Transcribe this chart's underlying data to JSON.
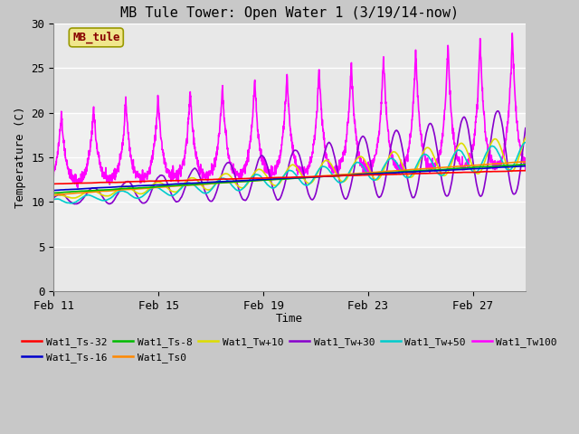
{
  "title": "MB Tule Tower: Open Water 1 (3/19/14-now)",
  "xlabel": "Time",
  "ylabel": "Temperature (C)",
  "ylim": [
    0,
    30
  ],
  "yticks": [
    0,
    5,
    10,
    15,
    20,
    25,
    30
  ],
  "xtick_labels": [
    "Feb 11",
    "Feb 15",
    "Feb 19",
    "Feb 23",
    "Feb 27"
  ],
  "xtick_positions": [
    0,
    4,
    8,
    12,
    16
  ],
  "fig_facecolor": "#c8c8c8",
  "ax_facecolor": "#e8e8e8",
  "inner_band_color": "#d8d8d8",
  "grid_color": "#ffffff",
  "legend_box_label": "MB_tule",
  "legend_box_facecolor": "#f0e68c",
  "legend_box_edgecolor": "#999900",
  "legend_box_textcolor": "#880000",
  "series_order": [
    "Wat1_Tw100",
    "Wat1_Tw+30",
    "Wat1_Tw+10",
    "Wat1_Tw+50",
    "Wat1_Ts0",
    "Wat1_Ts-8",
    "Wat1_Ts-16",
    "Wat1_Ts-32"
  ],
  "series_colors": {
    "Wat1_Ts-32": "#ff0000",
    "Wat1_Ts-16": "#0000cc",
    "Wat1_Ts-8": "#00bb00",
    "Wat1_Ts0": "#ff8800",
    "Wat1_Tw+10": "#dddd00",
    "Wat1_Tw+30": "#8800cc",
    "Wat1_Tw+50": "#00cccc",
    "Wat1_Tw100": "#ff00ff"
  },
  "series_starts": {
    "Wat1_Ts-32": 12.0,
    "Wat1_Ts-16": 11.3,
    "Wat1_Ts-8": 11.0,
    "Wat1_Ts0": 10.8,
    "Wat1_Tw+10": 10.5,
    "Wat1_Tw+30": 10.2,
    "Wat1_Tw+50": 10.0,
    "Wat1_Tw100": 12.0
  },
  "series_ends": {
    "Wat1_Ts-32": 13.5,
    "Wat1_Ts-16": 14.0,
    "Wat1_Ts-8": 14.2,
    "Wat1_Ts0": 14.5,
    "Wat1_Tw+10": 15.5,
    "Wat1_Tw+30": 15.8,
    "Wat1_Tw+50": 15.2,
    "Wat1_Tw100": 13.5
  },
  "legend_row1": [
    "Wat1_Ts-32",
    "Wat1_Ts-16",
    "Wat1_Ts-8",
    "Wat1_Ts0",
    "Wat1_Tw+10",
    "Wat1_Tw+30"
  ],
  "legend_row2": [
    "Wat1_Tw+50",
    "Wat1_Tw100"
  ]
}
